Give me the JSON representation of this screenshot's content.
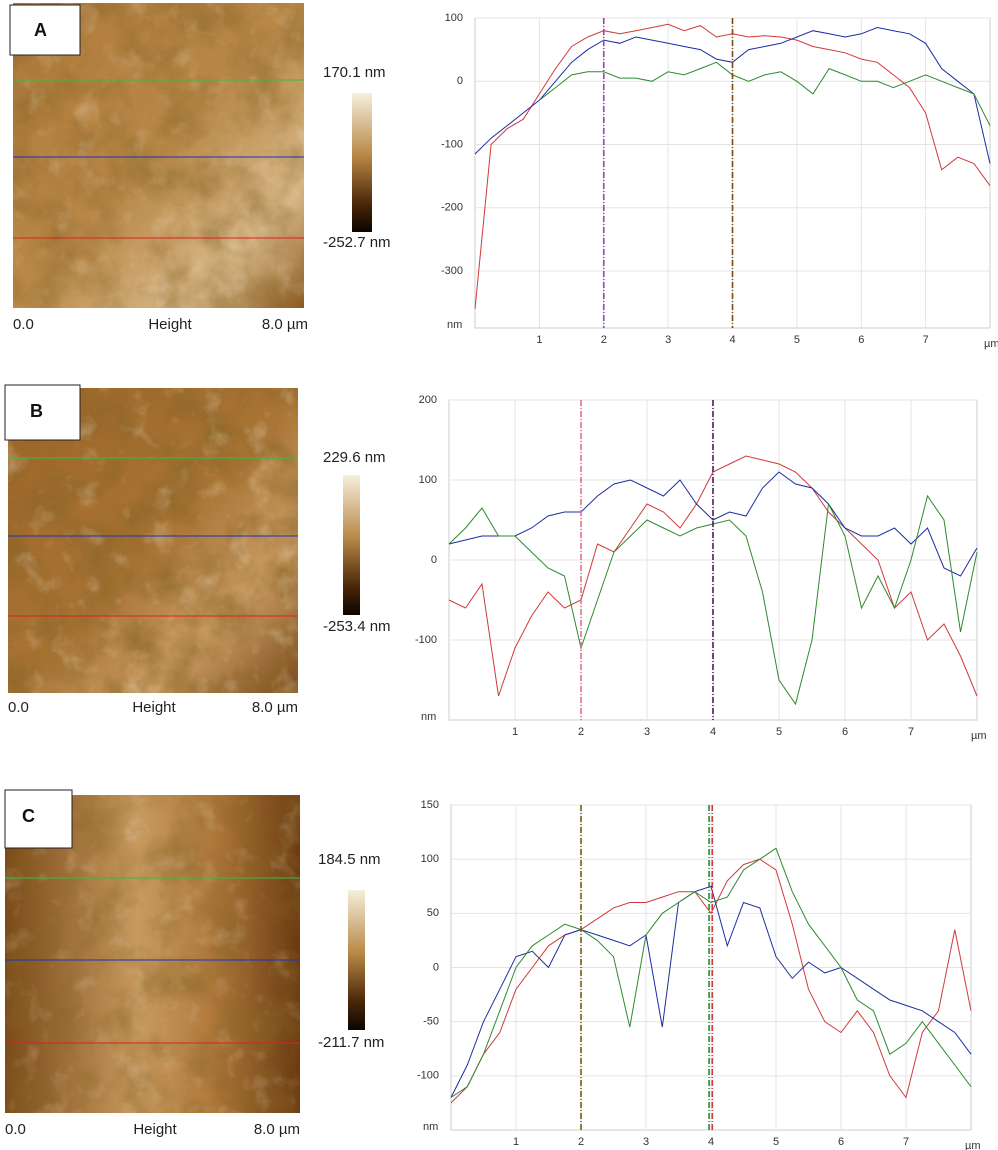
{
  "images": [
    {
      "label": "A",
      "max": "170.1 nm",
      "min": "-252.7 nm",
      "x_start": "0.0",
      "name": "Height",
      "x_end": "8.0 µm"
    },
    {
      "label": "B",
      "max": "229.6 nm",
      "min": "-253.4 nm",
      "x_start": "0.0",
      "name": "Height",
      "x_end": "8.0 µm"
    },
    {
      "label": "C",
      "max": "184.5 nm",
      "min": "-211.7 nm",
      "x_start": "0.0",
      "name": "Height",
      "x_end": "8.0 µm"
    }
  ],
  "chart_data": [
    {
      "type": "line",
      "y_label": "nm",
      "x_label": "µm",
      "x": [
        0,
        0.25,
        0.5,
        0.75,
        1,
        1.25,
        1.5,
        1.75,
        2,
        2.25,
        2.5,
        2.75,
        3,
        3.25,
        3.5,
        3.75,
        4,
        4.25,
        4.5,
        4.75,
        5,
        5.25,
        5.5,
        5.75,
        6,
        6.25,
        6.5,
        6.75,
        7,
        7.25,
        7.5,
        7.75,
        8
      ],
      "xlim": [
        0,
        8
      ],
      "xticks": [
        1,
        2,
        3,
        4,
        5,
        6,
        7
      ],
      "ylim": [
        -390,
        100
      ],
      "yticks": [
        100,
        0,
        -100,
        -200,
        -300
      ],
      "grid": true,
      "cursors": [
        {
          "x": 2,
          "color": "#9a3fb8"
        },
        {
          "x": 4,
          "color": "#7a4a10"
        }
      ],
      "series": [
        {
          "name": null,
          "color": "#d03a3a",
          "values": [
            -360,
            -100,
            -75,
            -60,
            -20,
            20,
            55,
            70,
            80,
            75,
            80,
            85,
            90,
            80,
            88,
            70,
            75,
            70,
            72,
            70,
            65,
            55,
            50,
            45,
            35,
            30,
            10,
            -10,
            -50,
            -140,
            -120,
            -130,
            -165
          ]
        },
        {
          "name": null,
          "color": "#1c2ea0",
          "values": [
            -115,
            -90,
            -70,
            -50,
            -30,
            0,
            30,
            50,
            65,
            60,
            70,
            65,
            60,
            55,
            50,
            35,
            30,
            50,
            55,
            60,
            70,
            80,
            75,
            70,
            75,
            85,
            80,
            75,
            60,
            20,
            0,
            -20,
            -130
          ]
        },
        {
          "name": null,
          "color": "#2e8a2e",
          "values": [
            null,
            null,
            null,
            null,
            -30,
            -10,
            10,
            15,
            15,
            5,
            5,
            0,
            15,
            10,
            20,
            30,
            10,
            0,
            10,
            15,
            0,
            -20,
            20,
            10,
            0,
            0,
            -10,
            0,
            10,
            0,
            -10,
            -20,
            -70
          ]
        }
      ]
    },
    {
      "type": "line",
      "y_label": "nm",
      "x_label": "µm",
      "x": [
        0,
        0.25,
        0.5,
        0.75,
        1,
        1.25,
        1.5,
        1.75,
        2,
        2.25,
        2.5,
        2.75,
        3,
        3.25,
        3.5,
        3.75,
        4,
        4.25,
        4.5,
        4.75,
        5,
        5.25,
        5.5,
        5.75,
        6,
        6.25,
        6.5,
        6.75,
        7,
        7.25,
        7.5,
        7.75,
        8
      ],
      "xlim": [
        0,
        8
      ],
      "xticks": [
        1,
        2,
        3,
        4,
        5,
        6,
        7
      ],
      "ylim": [
        -200,
        200
      ],
      "yticks": [
        200,
        100,
        0,
        -100
      ],
      "grid": true,
      "cursors": [
        {
          "x": 2,
          "color": "#e07090"
        },
        {
          "x": 4,
          "color": "#4a1a60"
        }
      ],
      "series": [
        {
          "name": null,
          "color": "#d03a3a",
          "values": [
            -50,
            -60,
            -30,
            -170,
            -110,
            -70,
            -40,
            -60,
            -50,
            20,
            10,
            40,
            70,
            60,
            40,
            70,
            110,
            120,
            130,
            125,
            120,
            110,
            90,
            60,
            40,
            20,
            0,
            -60,
            -40,
            -100,
            -80,
            -120,
            -170
          ]
        },
        {
          "name": null,
          "color": "#1c2ea0",
          "values": [
            20,
            25,
            30,
            30,
            30,
            40,
            55,
            60,
            60,
            80,
            95,
            100,
            90,
            80,
            100,
            70,
            50,
            60,
            55,
            90,
            110,
            95,
            90,
            70,
            40,
            30,
            30,
            40,
            20,
            40,
            -10,
            -20,
            15
          ]
        },
        {
          "name": null,
          "color": "#2e8a2e",
          "values": [
            20,
            40,
            65,
            30,
            30,
            10,
            -10,
            -20,
            -110,
            -50,
            10,
            30,
            50,
            40,
            30,
            40,
            45,
            50,
            30,
            -40,
            -150,
            -180,
            -100,
            70,
            30,
            -60,
            -20,
            -60,
            0,
            80,
            50,
            -90,
            10
          ]
        }
      ]
    },
    {
      "type": "line",
      "y_label": "nm",
      "x_label": "µm",
      "x": [
        0,
        0.25,
        0.5,
        0.75,
        1,
        1.25,
        1.5,
        1.75,
        2,
        2.25,
        2.5,
        2.75,
        3,
        3.25,
        3.5,
        3.75,
        4,
        4.25,
        4.5,
        4.75,
        5,
        5.25,
        5.5,
        5.75,
        6,
        6.25,
        6.5,
        6.75,
        7,
        7.25,
        7.5,
        7.75,
        8
      ],
      "xlim": [
        0,
        8
      ],
      "xticks": [
        1,
        2,
        3,
        4,
        5,
        6,
        7
      ],
      "ylim": [
        -150,
        150
      ],
      "yticks": [
        150,
        100,
        50,
        0,
        -50,
        -100
      ],
      "grid": true,
      "cursors": [
        {
          "x": 2,
          "color": "#7a5a10"
        },
        {
          "x": 3.97,
          "color": "#2e8a2e"
        },
        {
          "x": 4.02,
          "color": "#d03a3a"
        }
      ],
      "series": [
        {
          "name": null,
          "color": "#d03a3a",
          "values": [
            -125,
            -110,
            -80,
            -60,
            -20,
            0,
            20,
            30,
            35,
            45,
            55,
            60,
            60,
            65,
            70,
            70,
            50,
            80,
            95,
            100,
            90,
            40,
            -20,
            -50,
            -60,
            -40,
            -60,
            -100,
            -120,
            -60,
            -40,
            35,
            -40
          ]
        },
        {
          "name": null,
          "color": "#1c2ea0",
          "values": [
            -120,
            -90,
            -50,
            -20,
            10,
            15,
            0,
            30,
            35,
            30,
            25,
            20,
            30,
            -55,
            60,
            70,
            75,
            20,
            60,
            55,
            10,
            -10,
            5,
            -5,
            0,
            -10,
            -20,
            -30,
            -35,
            -40,
            -50,
            -60,
            -80
          ]
        },
        {
          "name": null,
          "color": "#2e8a2e",
          "values": [
            -120,
            -110,
            -80,
            -40,
            0,
            20,
            30,
            40,
            35,
            25,
            10,
            -55,
            30,
            50,
            60,
            70,
            60,
            65,
            90,
            100,
            110,
            70,
            40,
            20,
            0,
            -30,
            -40,
            -80,
            -70,
            -50,
            -70,
            -90,
            -110
          ]
        }
      ]
    }
  ]
}
